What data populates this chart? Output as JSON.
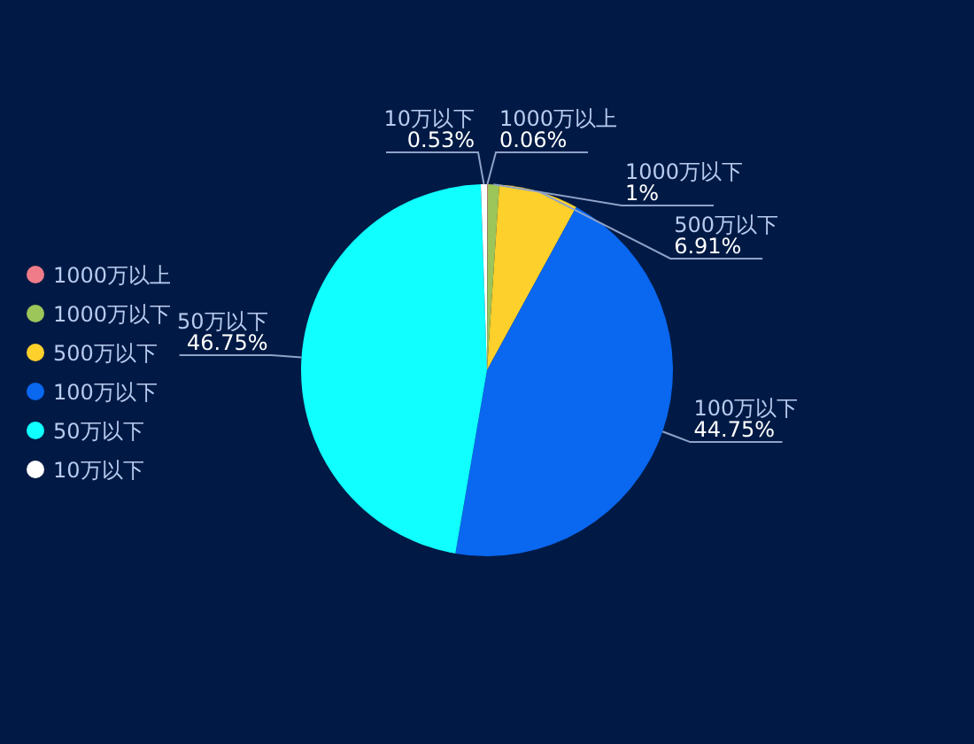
{
  "chart_data": {
    "type": "pie",
    "categories": [
      "1000万以上",
      "1000万以下",
      "500万以下",
      "100万以下",
      "50万以下",
      "10万以下"
    ],
    "values": [
      0.06,
      1,
      6.91,
      44.75,
      46.75,
      0.53
    ],
    "value_labels": [
      "0.06%",
      "1%",
      "6.91%",
      "44.75%",
      "46.75%",
      "0.53%"
    ],
    "colors": [
      "#f07c8a",
      "#9cc55a",
      "#fdd02b",
      "#0a67f0",
      "#10ffff",
      "#ffffff"
    ],
    "legend": "left"
  }
}
